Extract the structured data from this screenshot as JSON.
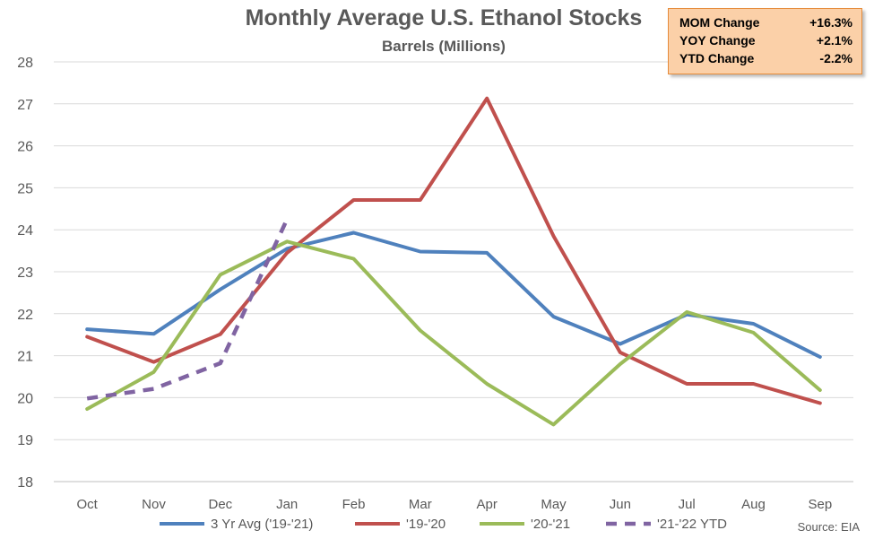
{
  "chart_data": {
    "type": "line",
    "title": "Monthly Average U.S. Ethanol Stocks",
    "subtitle": "Barrels (Millions)",
    "categories": [
      "Oct",
      "Nov",
      "Dec",
      "Jan",
      "Feb",
      "Mar",
      "Apr",
      "May",
      "Jun",
      "Jul",
      "Aug",
      "Sep"
    ],
    "ylim": [
      18,
      28
    ],
    "yticks": [
      18,
      19,
      20,
      21,
      22,
      23,
      24,
      25,
      26,
      27,
      28
    ],
    "grid": true,
    "legend_position": "bottom",
    "series": [
      {
        "name": "3 Yr Avg ('19-'21)",
        "color": "#4f81bd",
        "dashed": false,
        "values": [
          21.63,
          21.52,
          22.58,
          23.55,
          23.93,
          23.48,
          23.45,
          21.93,
          21.28,
          21.98,
          21.76,
          20.97
        ]
      },
      {
        "name": "'19-'20",
        "color": "#c0504d",
        "dashed": false,
        "values": [
          21.45,
          20.85,
          21.51,
          23.45,
          24.71,
          24.71,
          27.13,
          23.85,
          21.08,
          20.33,
          20.33,
          19.87
        ]
      },
      {
        "name": "'20-'21",
        "color": "#9bbb59",
        "dashed": false,
        "values": [
          19.73,
          20.61,
          22.93,
          23.72,
          23.31,
          21.6,
          20.33,
          19.36,
          20.8,
          22.04,
          21.55,
          20.18
        ]
      },
      {
        "name": "'21-'22 YTD",
        "color": "#8064a2",
        "dashed": true,
        "values": [
          19.98,
          20.21,
          20.82,
          24.25,
          null,
          null,
          null,
          null,
          null,
          null,
          null,
          null
        ]
      }
    ]
  },
  "stats_box": {
    "rows": [
      {
        "label": "MOM Change",
        "value": "+16.3%"
      },
      {
        "label": "YOY Change",
        "value": "+2.1%"
      },
      {
        "label": "YTD Change",
        "value": "-2.2%"
      }
    ]
  },
  "source": "Source: EIA"
}
